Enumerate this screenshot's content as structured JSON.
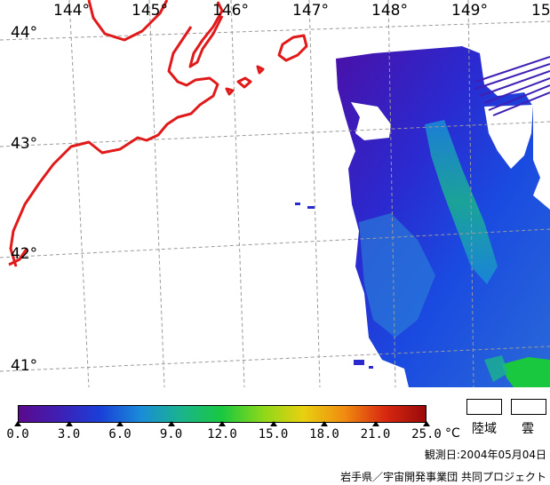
{
  "map": {
    "lon_labels": [
      "144°",
      "145°",
      "146°",
      "147°",
      "148°",
      "149°",
      "15"
    ],
    "lat_labels": [
      "44°",
      "43°",
      "42°",
      "41°"
    ],
    "land_color": "#ffffff",
    "coastline_color": "#e01a1a",
    "grid_color": "#9a9a9a"
  },
  "legend": {
    "ticks": [
      "0.0",
      "3.0",
      "6.0",
      "9.0",
      "12.0",
      "15.0",
      "18.0",
      "21.0",
      "25.0"
    ],
    "unit": "°C",
    "land_label": "陸域",
    "cloud_label": "雲",
    "colors": [
      "#5a0a8c",
      "#3f1fb4",
      "#1a3fd8",
      "#1a8cd8",
      "#1ab48c",
      "#1ac83f",
      "#8cd81a",
      "#e8d010",
      "#f08c10",
      "#d82810",
      "#9a0a0a"
    ]
  },
  "footer": {
    "observation_date": "観測日:2004年05月04日",
    "credit": "岩手県／宇宙開発事業団 共同プロジェクト"
  }
}
